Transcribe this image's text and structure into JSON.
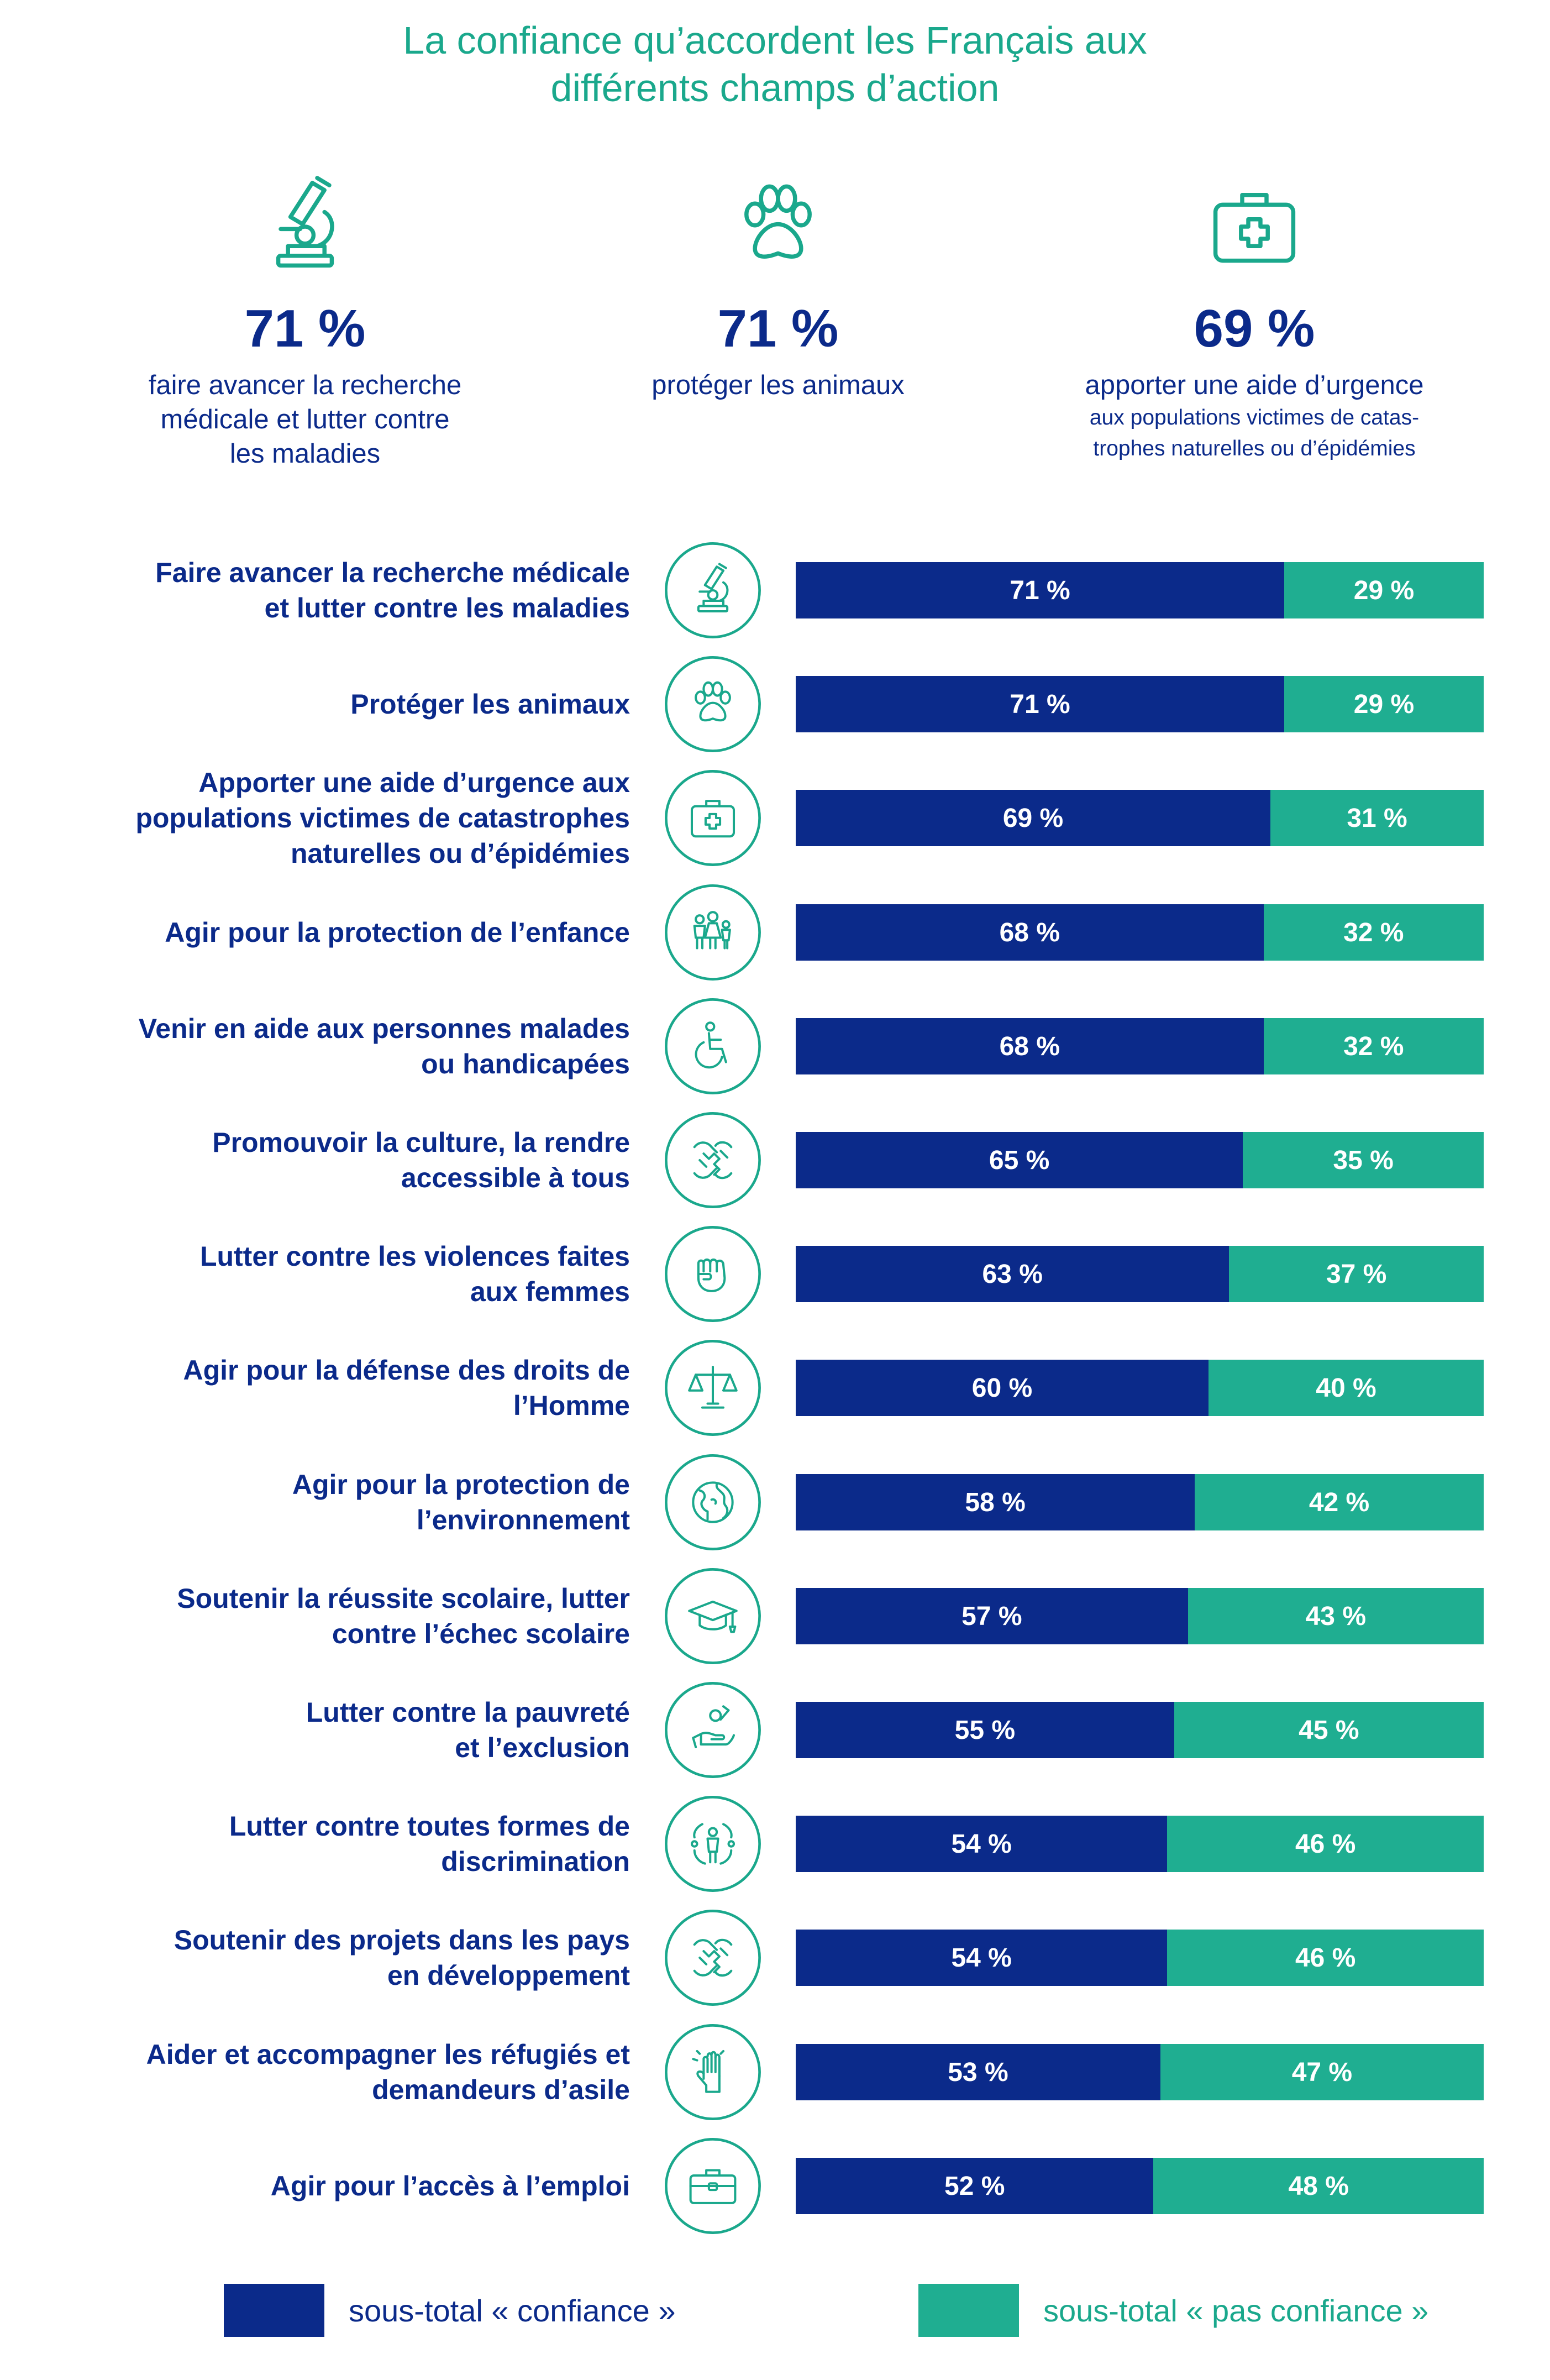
{
  "title": {
    "line1": "La confiance qu’accordent les Français aux",
    "line2": "différents champs d’action"
  },
  "highlights": [
    {
      "icon": "microscope-icon",
      "value": "71 %",
      "desc": [
        "faire avancer la recherche",
        "médicale et lutter contre",
        "les maladies"
      ],
      "sub": []
    },
    {
      "icon": "paw-icon",
      "value": "71 %",
      "desc": [
        "protéger les animaux"
      ],
      "sub": []
    },
    {
      "icon": "first-aid-kit-icon",
      "value": "69 %",
      "desc": [
        "apporter une aide d’urgence"
      ],
      "sub": [
        "aux populations victimes de catas-",
        "trophes naturelles ou d’épidémies"
      ]
    }
  ],
  "chart_data": {
    "type": "bar",
    "orientation": "horizontal",
    "stacked": true,
    "categories": [
      [
        "Faire avancer la recherche médicale",
        "et lutter contre les maladies"
      ],
      [
        "Protéger les animaux"
      ],
      [
        "Apporter une aide d’urgence aux",
        "populations victimes de catastrophes",
        "naturelles ou d’épidémies"
      ],
      [
        "Agir pour la protection de l’enfance"
      ],
      [
        "Venir en aide aux personnes malades",
        "ou handicapées"
      ],
      [
        "Promouvoir la culture, la rendre",
        "accessible à tous"
      ],
      [
        "Lutter contre les violences faites",
        "aux femmes"
      ],
      [
        "Agir pour la défense des droits de",
        "l’Homme"
      ],
      [
        "Agir pour la protection de",
        "l’environnement"
      ],
      [
        "Soutenir la réussite scolaire, lutter",
        "contre l’échec scolaire"
      ],
      [
        "Lutter contre la pauvreté",
        "et l’exclusion"
      ],
      [
        "Lutter contre toutes formes de",
        "discrimination"
      ],
      [
        "Soutenir des projets dans les pays",
        "en développement"
      ],
      [
        "Aider et accompagner les réfugiés et",
        "demandeurs d’asile"
      ],
      [
        "Agir pour l’accès à l’emploi"
      ]
    ],
    "icons": [
      "microscope-icon",
      "paw-icon",
      "first-aid-kit-icon",
      "children-icon",
      "wheelchair-icon",
      "joined-hands-icon",
      "fist-icon",
      "scales-icon",
      "globe-icon",
      "graduation-cap-icon",
      "coin-hand-icon",
      "people-circle-icon",
      "joined-hands-icon",
      "raised-hand-icon",
      "briefcase-icon"
    ],
    "series": [
      {
        "name": "sous-total « confiance »",
        "color": "#0b2a8a",
        "values": [
          71,
          71,
          69,
          68,
          68,
          65,
          63,
          60,
          58,
          57,
          55,
          54,
          54,
          53,
          52
        ]
      },
      {
        "name": "sous-total « pas confiance »",
        "color": "#1fae91",
        "values": [
          29,
          29,
          31,
          32,
          32,
          35,
          37,
          40,
          42,
          43,
          45,
          46,
          46,
          47,
          48
        ]
      }
    ],
    "value_suffix": " %",
    "xlim": [
      0,
      100
    ],
    "legend_position": "bottom"
  },
  "legend": [
    {
      "label": "sous-total « confiance »",
      "color": "#0b2a8a"
    },
    {
      "label": "sous-total « pas confiance »",
      "color": "#1fae91"
    }
  ],
  "colors": {
    "title": "#1aa88c",
    "navy": "#0b2a8a",
    "teal": "#1fae91",
    "icon": "#1aa88c"
  }
}
